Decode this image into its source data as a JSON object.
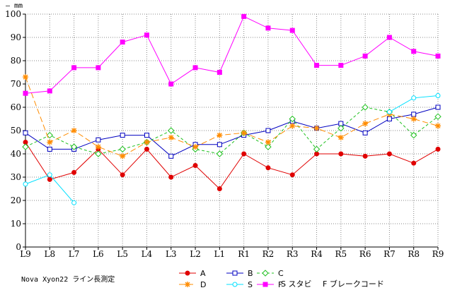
{
  "chart_data": {
    "type": "line",
    "unit_label": "— mm",
    "note": "Nova Xyon22 ライン長測定",
    "stabi_note": "S スタビ",
    "brake_note": "F ブレークコード",
    "categories": [
      "L9",
      "L8",
      "L7",
      "L6",
      "L5",
      "L4",
      "L3",
      "L2",
      "L1",
      "R1",
      "R2",
      "R3",
      "R4",
      "R5",
      "R6",
      "R7",
      "R8",
      "R9"
    ],
    "ylim": [
      0,
      100
    ],
    "yticks": [
      0,
      10,
      20,
      30,
      40,
      50,
      60,
      70,
      80,
      90,
      100
    ],
    "grid": "dotted",
    "series": [
      {
        "name": "A",
        "color": "#e00000",
        "marker": "circle",
        "dash": "",
        "values": [
          45,
          29,
          32,
          42,
          31,
          42,
          30,
          35,
          25,
          40,
          34,
          31,
          40,
          40,
          39,
          40,
          36,
          42
        ]
      },
      {
        "name": "B",
        "color": "#0000c0",
        "marker": "square-open",
        "dash": "",
        "values": [
          49,
          42,
          42,
          46,
          48,
          48,
          39,
          44,
          44,
          48,
          50,
          54,
          51,
          53,
          49,
          55,
          57,
          60
        ]
      },
      {
        "name": "C",
        "color": "#20c020",
        "marker": "diamond-open",
        "dash": "4,3",
        "values": [
          43,
          48,
          43,
          40,
          42,
          45,
          50,
          42,
          40,
          49,
          43,
          55,
          42,
          51,
          60,
          58,
          48,
          56
        ]
      },
      {
        "name": "D",
        "color": "#ff8c00",
        "marker": "star",
        "dash": "8,4",
        "values": [
          73,
          45,
          50,
          43,
          39,
          45,
          47,
          43,
          48,
          49,
          45,
          52,
          51,
          47,
          53,
          57,
          55,
          52
        ]
      },
      {
        "name": "S",
        "color": "#00e0ff",
        "marker": "circle-open",
        "dash": "",
        "values": [
          27,
          31,
          19,
          null,
          null,
          null,
          null,
          null,
          null,
          null,
          null,
          null,
          null,
          null,
          null,
          58,
          64,
          65
        ]
      },
      {
        "name": "F",
        "color": "#ff00ff",
        "marker": "square",
        "dash": "",
        "values": [
          66,
          67,
          77,
          77,
          88,
          91,
          70,
          77,
          75,
          99,
          94,
          93,
          78,
          78,
          82,
          90,
          84,
          82
        ]
      }
    ]
  }
}
